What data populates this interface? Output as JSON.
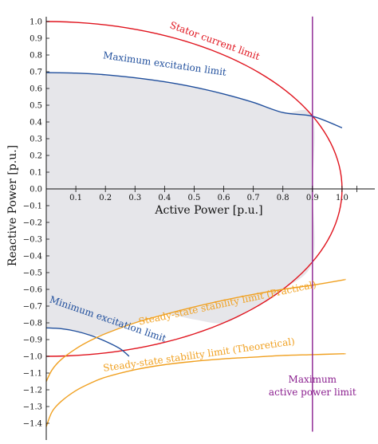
{
  "chart_data": {
    "type": "line",
    "title": "",
    "xlabel": "Active Power [p.u.]",
    "ylabel": "Reactive Power [p.u.]",
    "xlim": [
      0,
      1.1
    ],
    "ylim": [
      -1.45,
      1.05
    ],
    "grid": false,
    "legend": "none",
    "x_ticks": [
      "0.1",
      "0.2",
      "0.3",
      "0.4",
      "0.5",
      "0.6",
      "0.7",
      "0.8",
      "0.9",
      "1.0"
    ],
    "y_ticks": [
      "1.0",
      "0.9",
      "0.8",
      "0.7",
      "0.6",
      "0.5",
      "0.4",
      "0.3",
      "0.2",
      "0.1",
      "0.0",
      "−0.1",
      "−0.2",
      "−0.3",
      "−0.4",
      "−0.5",
      "−0.6",
      "−0.7",
      "−0.8",
      "−0.9",
      "−1.0",
      "−1.1",
      "−1.2",
      "−1.3",
      "−1.4"
    ],
    "series": [
      {
        "name": "Stator current limit",
        "color": "#e0141e",
        "label_color": "#e0141e",
        "points": [
          [
            0.0,
            1.0
          ],
          [
            0.2,
            0.98
          ],
          [
            0.4,
            0.917
          ],
          [
            0.6,
            0.8
          ],
          [
            0.7,
            0.714
          ],
          [
            0.8,
            0.6
          ],
          [
            0.9,
            0.436
          ],
          [
            0.95,
            0.312
          ],
          [
            0.98,
            0.199
          ],
          [
            1.0,
            0.0
          ],
          [
            0.98,
            -0.199
          ],
          [
            0.95,
            -0.312
          ],
          [
            0.9,
            -0.436
          ],
          [
            0.8,
            -0.6
          ],
          [
            0.7,
            -0.714
          ],
          [
            0.6,
            -0.8
          ],
          [
            0.4,
            -0.917
          ],
          [
            0.2,
            -0.98
          ],
          [
            0.0,
            -1.0
          ]
        ]
      },
      {
        "name": "Maximum excitation limit",
        "color": "#1f4e9c",
        "label_color": "#1f4e9c",
        "points": [
          [
            0.0,
            0.695
          ],
          [
            0.1,
            0.692
          ],
          [
            0.2,
            0.682
          ],
          [
            0.3,
            0.664
          ],
          [
            0.4,
            0.64
          ],
          [
            0.5,
            0.608
          ],
          [
            0.6,
            0.567
          ],
          [
            0.7,
            0.517
          ],
          [
            0.8,
            0.456
          ],
          [
            0.9,
            0.434
          ],
          [
            1.0,
            0.365
          ]
        ]
      },
      {
        "name": "Minimum excitation limit",
        "color": "#1f4e9c",
        "label_color": "#1f4e9c",
        "points": [
          [
            0.0,
            -0.83
          ],
          [
            0.05,
            -0.835
          ],
          [
            0.1,
            -0.85
          ],
          [
            0.15,
            -0.875
          ],
          [
            0.2,
            -0.91
          ],
          [
            0.25,
            -0.955
          ],
          [
            0.28,
            -1.0
          ]
        ]
      },
      {
        "name": "Steady-state stability limit (Practical)",
        "color": "#f0a020",
        "label_color": "#f0a020",
        "points": [
          [
            0.0,
            -1.15
          ],
          [
            0.02,
            -1.08
          ],
          [
            0.05,
            -1.02
          ],
          [
            0.1,
            -0.955
          ],
          [
            0.15,
            -0.905
          ],
          [
            0.2,
            -0.865
          ],
          [
            0.3,
            -0.8
          ],
          [
            0.4,
            -0.75
          ],
          [
            0.5,
            -0.705
          ],
          [
            0.6,
            -0.665
          ],
          [
            0.7,
            -0.63
          ],
          [
            0.8,
            -0.6
          ],
          [
            0.9,
            -0.575
          ],
          [
            1.0,
            -0.545
          ],
          [
            1.01,
            -0.54
          ]
        ]
      },
      {
        "name": "Steady-state stability limit (Theoretical)",
        "color": "#f0a020",
        "label_color": "#f0a020",
        "points": [
          [
            0.0,
            -1.42
          ],
          [
            0.02,
            -1.33
          ],
          [
            0.05,
            -1.27
          ],
          [
            0.1,
            -1.205
          ],
          [
            0.15,
            -1.16
          ],
          [
            0.2,
            -1.125
          ],
          [
            0.3,
            -1.08
          ],
          [
            0.4,
            -1.05
          ],
          [
            0.5,
            -1.03
          ],
          [
            0.6,
            -1.015
          ],
          [
            0.7,
            -1.005
          ],
          [
            0.8,
            -0.995
          ],
          [
            0.9,
            -0.99
          ],
          [
            1.0,
            -0.985
          ],
          [
            1.01,
            -0.985
          ]
        ]
      },
      {
        "name": "Maximum active power limit",
        "color": "#8b1f8f",
        "label_color": "#8b1f8f",
        "points": [
          [
            0.9,
            1.03
          ],
          [
            0.9,
            -1.45
          ]
        ]
      }
    ],
    "shaded_region": {
      "color": "#e6e6ea",
      "boundary": [
        [
          0.0,
          0.695
        ],
        [
          0.1,
          0.692
        ],
        [
          0.2,
          0.682
        ],
        [
          0.3,
          0.664
        ],
        [
          0.4,
          0.64
        ],
        [
          0.5,
          0.608
        ],
        [
          0.6,
          0.567
        ],
        [
          0.7,
          0.517
        ],
        [
          0.8,
          0.456
        ],
        [
          0.9,
          0.436
        ],
        [
          0.9,
          0.0
        ],
        [
          0.9,
          -0.436
        ],
        [
          0.8,
          -0.6
        ],
        [
          0.7,
          -0.714
        ],
        [
          0.6,
          -0.8
        ],
        [
          0.5,
          -0.78
        ],
        [
          0.4,
          -0.75
        ],
        [
          0.3,
          -0.8
        ],
        [
          0.2,
          -0.865
        ],
        [
          0.15,
          -0.875
        ],
        [
          0.1,
          -0.85
        ],
        [
          0.05,
          -0.835
        ],
        [
          0.0,
          -0.83
        ]
      ]
    }
  }
}
